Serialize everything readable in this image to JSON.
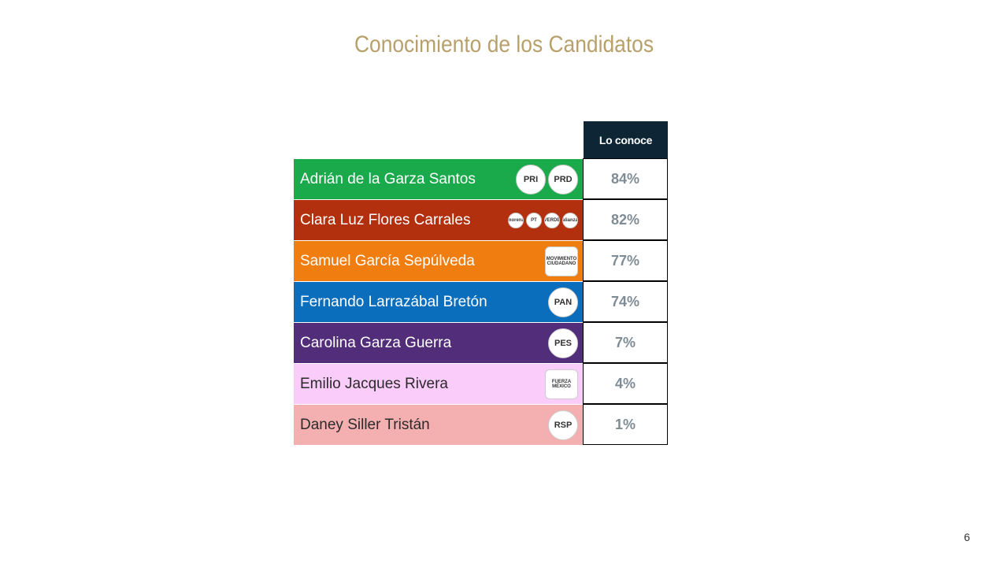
{
  "header": {
    "title": "Conocimiento de los Candidatos"
  },
  "table": {
    "column_header": "Lo conoce",
    "rows": [
      {
        "name": "Adrián de la Garza Santos",
        "value": "84%",
        "color": "#1aaa4b",
        "text_color": "#ffffff",
        "logos": [
          "PRI",
          "PRD"
        ]
      },
      {
        "name": "Clara Luz Flores Carrales",
        "value": "82%",
        "color": "#b3300f",
        "text_color": "#ffffff",
        "logos": [
          "morena",
          "PT",
          "VERDE",
          "alianza"
        ]
      },
      {
        "name": "Samuel García Sepúlveda",
        "value": "77%",
        "color": "#f07d10",
        "text_color": "#ffffff",
        "logos": [
          "MOVIMIENTO CIUDADANO"
        ]
      },
      {
        "name": "Fernando Larrazábal Bretón",
        "value": "74%",
        "color": "#0a6ebd",
        "text_color": "#ffffff",
        "logos": [
          "PAN"
        ]
      },
      {
        "name": "Carolina Garza Guerra",
        "value": "7%",
        "color": "#512d7a",
        "text_color": "#ffffff",
        "logos": [
          "PES"
        ]
      },
      {
        "name": "Emilio Jacques Rivera",
        "value": "4%",
        "color": "#f9ccf9",
        "text_color": "#2b2b2b",
        "logos": [
          "FUERZA MÉXICO"
        ]
      },
      {
        "name": "Daney Siller Tristán",
        "value": "1%",
        "color": "#f4b0b0",
        "text_color": "#2b2b2b",
        "logos": [
          "RSP"
        ]
      }
    ]
  },
  "footer": {
    "page_number": "6"
  }
}
